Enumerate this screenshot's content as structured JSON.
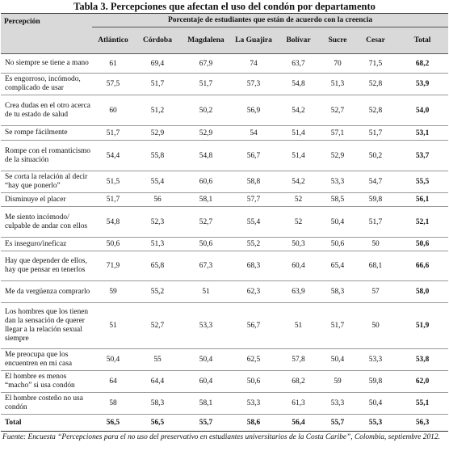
{
  "title": "Tabla 3. Percepciones que afectan el uso del condón por departamento",
  "header": {
    "perception_label": "Percepción",
    "group_label": "Porcentaje de estudiantes que están de acuerdo con la creencia",
    "departments": [
      "Atlántico",
      "Córdoba",
      "Magdalena",
      "La Guajira",
      "Bolívar",
      "Sucre",
      "Cesar"
    ],
    "total_label": "Total"
  },
  "rows": [
    {
      "label": "No siempre se tiene a mano",
      "values": [
        "61",
        "69,4",
        "67,9",
        "74",
        "63,7",
        "70",
        "71,5"
      ],
      "total": "68,2"
    },
    {
      "label": "Es engorroso, incómodo, complicado de usar",
      "values": [
        "57,5",
        "51,7",
        "51,7",
        "57,3",
        "54,8",
        "51,3",
        "52,8"
      ],
      "total": "53,9"
    },
    {
      "label": "Crea dudas en el otro acerca de tu estado de salud",
      "values": [
        "60",
        "51,2",
        "50,2",
        "56,9",
        "54,2",
        "52,7",
        "52,8"
      ],
      "total": "54,0"
    },
    {
      "label": "Se rompe fácilmente",
      "values": [
        "51,7",
        "52,9",
        "52,9",
        "54",
        "51,4",
        "57,1",
        "51,7"
      ],
      "total": "53,1"
    },
    {
      "label": "Rompe con el romanticismo de la situación",
      "values": [
        "54,4",
        "55,8",
        "54,8",
        "56,7",
        "51,4",
        "52,9",
        "50,2"
      ],
      "total": "53,7"
    },
    {
      "label": "Se corta la relación al decir “hay que ponerlo”",
      "values": [
        "51,5",
        "55,4",
        "60,6",
        "58,8",
        "54,2",
        "53,3",
        "54,7"
      ],
      "total": "55,5"
    },
    {
      "label": "Disminuye el placer",
      "values": [
        "51,7",
        "56",
        "58,1",
        "57,7",
        "52",
        "58,5",
        "59,8"
      ],
      "total": "56,1"
    },
    {
      "label": "Me siento incómodo/ culpable de andar con ellos",
      "values": [
        "54,8",
        "52,3",
        "52,7",
        "55,4",
        "52",
        "50,4",
        "51,7"
      ],
      "total": "52,1"
    },
    {
      "label": "Es inseguro/ineficaz",
      "values": [
        "50,6",
        "51,3",
        "50,6",
        "55,2",
        "50,3",
        "50,6",
        "50"
      ],
      "total": "50,6"
    },
    {
      "label": "Hay que depender de ellos, hay que pensar en tenerlos",
      "values": [
        "71,9",
        "65,8",
        "67,3",
        "68,3",
        "60,4",
        "65,4",
        "68,1"
      ],
      "total": "66,6"
    },
    {
      "label": "Me da vergüenza comprarlo",
      "values": [
        "59",
        "55,2",
        "51",
        "62,3",
        "63,9",
        "58,3",
        "57"
      ],
      "total": "58,0"
    },
    {
      "label": "Los hombres que los tienen dan la sensación de querer llegar a la relación sexual siempre",
      "values": [
        "51",
        "52,7",
        "53,3",
        "56,7",
        "51",
        "51,7",
        "50"
      ],
      "total": "51,9"
    },
    {
      "label": "Me preocupa que los encuentren en mi casa",
      "values": [
        "50,4",
        "55",
        "50,4",
        "62,5",
        "57,8",
        "50,4",
        "53,3"
      ],
      "total": "53,8"
    },
    {
      "label": "El hombre es menos “macho” si usa condón",
      "values": [
        "64",
        "64,4",
        "60,4",
        "50,6",
        "68,2",
        "59",
        "59,8"
      ],
      "total": "62,0"
    },
    {
      "label": "El hombre costeño no usa condón",
      "values": [
        "58",
        "58,3",
        "58,1",
        "53,3",
        "61,3",
        "53,3",
        "50,4"
      ],
      "total": "55,1"
    }
  ],
  "total_row": {
    "label": "Total",
    "values": [
      "56,5",
      "56,5",
      "55,7",
      "58,6",
      "56,4",
      "55,7",
      "55,3"
    ],
    "total": "56,3"
  },
  "source": "Fuente: Encuesta “Percepciones para el no uso del preservativo en estudiantes universitarios de la Costa Caribe”, Colombia, septiembre 2012."
}
